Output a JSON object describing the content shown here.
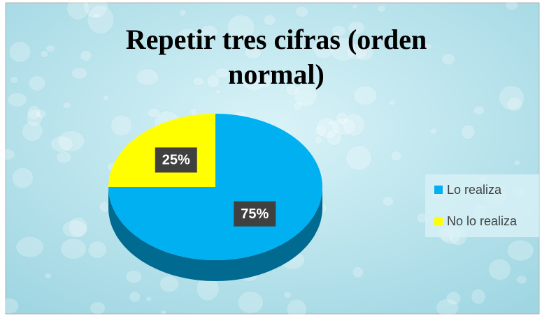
{
  "chart_data": {
    "type": "pie",
    "title": "Repetir tres cifras (orden normal)",
    "categories": [
      "Lo realiza",
      "No lo realiza"
    ],
    "values": [
      75,
      25
    ],
    "value_labels": [
      "75%",
      "25%"
    ],
    "colors": [
      "#00b0f0",
      "#ffff00"
    ],
    "legend": "right"
  }
}
